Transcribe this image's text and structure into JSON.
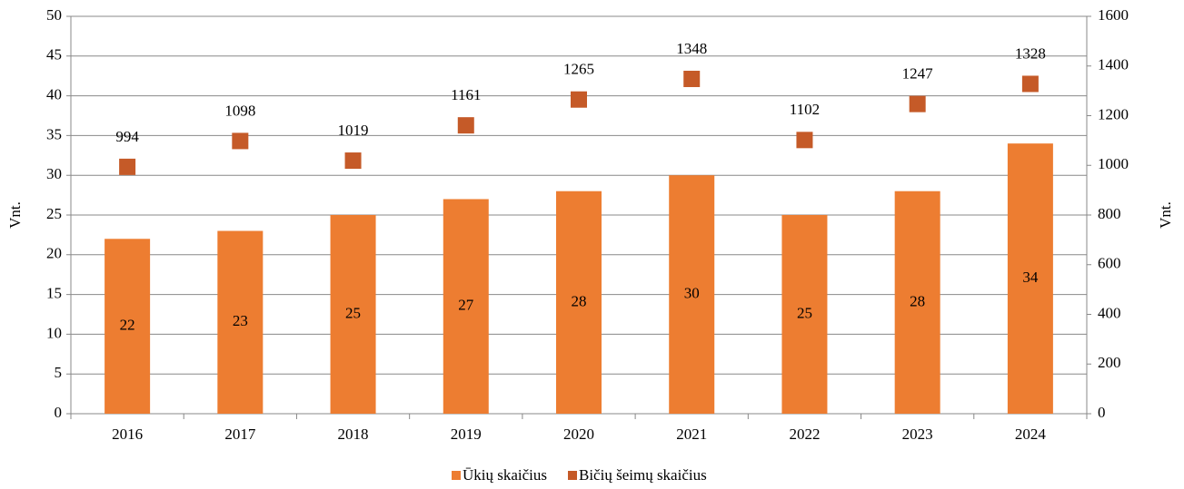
{
  "chart_data": {
    "type": "bar",
    "categories": [
      "2016",
      "2017",
      "2018",
      "2019",
      "2020",
      "2021",
      "2022",
      "2023",
      "2024"
    ],
    "series": [
      {
        "name": "Ūkių skaičius",
        "type": "bar",
        "color": "#ed7d31",
        "values": [
          22,
          23,
          25,
          27,
          28,
          30,
          25,
          28,
          34
        ]
      },
      {
        "name": "Bičių šeimų skaičius",
        "type": "scatter",
        "axis": "y2",
        "color": "#c55a28",
        "values": [
          994,
          1098,
          1019,
          1161,
          1265,
          1348,
          1102,
          1247,
          1328
        ]
      }
    ],
    "ylabel": "Vnt.",
    "y2label": "Vnt.",
    "ylim": [
      0,
      50
    ],
    "yticks": [
      0,
      5,
      10,
      15,
      20,
      25,
      30,
      35,
      40,
      45,
      50
    ],
    "y2lim": [
      0,
      1600
    ],
    "y2ticks": [
      0,
      200,
      400,
      600,
      800,
      1000,
      1200,
      1400,
      1600
    ],
    "grid": true,
    "legend": "bottom"
  }
}
